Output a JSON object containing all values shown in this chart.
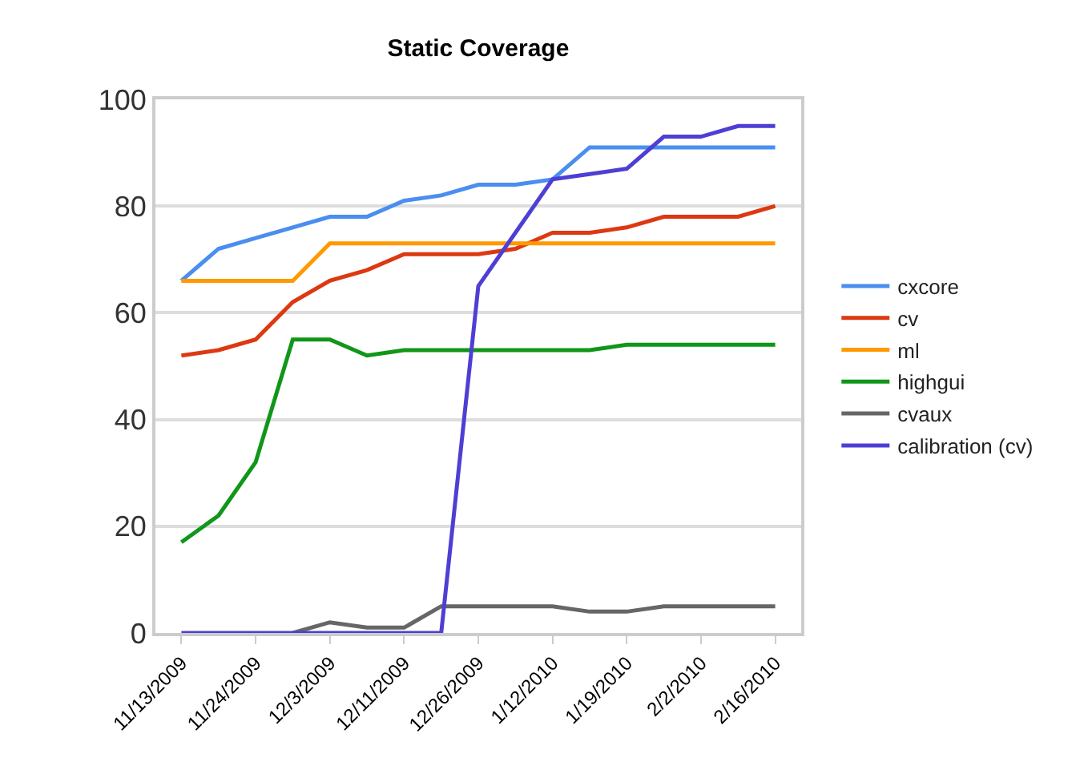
{
  "chart_data": {
    "type": "line",
    "title": "Static Coverage",
    "categories": [
      "11/13/2009",
      null,
      "11/24/2009",
      null,
      "12/3/2009",
      null,
      "12/11/2009",
      null,
      "12/26/2009",
      null,
      "1/12/2010",
      null,
      "1/19/2010",
      null,
      "2/2/2010",
      null,
      "2/16/2010"
    ],
    "series": [
      {
        "name": "cxcore",
        "color": "#4a8ef0",
        "values": [
          66,
          72,
          74,
          76,
          78,
          78,
          81,
          82,
          84,
          84,
          85,
          91,
          91,
          91,
          91,
          91,
          91
        ]
      },
      {
        "name": "cv",
        "color": "#dc3912",
        "values": [
          52,
          53,
          55,
          62,
          66,
          68,
          71,
          71,
          71,
          72,
          75,
          75,
          76,
          78,
          78,
          78,
          80
        ]
      },
      {
        "name": "ml",
        "color": "#ff9900",
        "values": [
          66,
          66,
          66,
          66,
          73,
          73,
          73,
          73,
          73,
          73,
          73,
          73,
          73,
          73,
          73,
          73,
          73
        ]
      },
      {
        "name": "highgui",
        "color": "#109618",
        "values": [
          17,
          22,
          32,
          55,
          55,
          52,
          53,
          53,
          53,
          53,
          53,
          53,
          54,
          54,
          54,
          54,
          54
        ]
      },
      {
        "name": "cvaux",
        "color": "#666666",
        "values": [
          null,
          null,
          null,
          0,
          2,
          1,
          1,
          5,
          5,
          5,
          5,
          4,
          4,
          5,
          5,
          5,
          5
        ]
      },
      {
        "name": "calibration (cv)",
        "color": "#4e3fd4",
        "values": [
          0,
          0,
          0,
          0,
          0,
          0,
          0,
          0,
          65,
          75,
          85,
          86,
          87,
          93,
          93,
          95,
          95
        ]
      }
    ],
    "ylim": [
      0,
      100
    ],
    "yticks": [
      0,
      20,
      40,
      60,
      80,
      100
    ],
    "grid": "y",
    "legend": "right",
    "marker": "none",
    "line_style": "solid"
  }
}
